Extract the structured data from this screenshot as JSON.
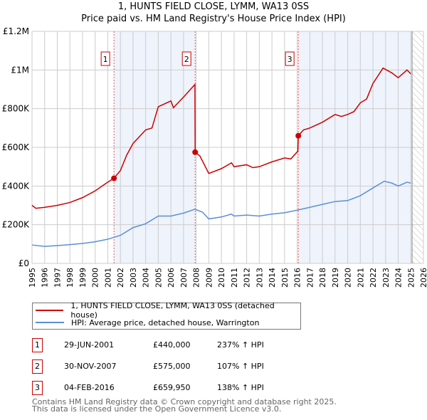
{
  "chart_data": {
    "type": "line",
    "title": "1, HUNTS FIELD CLOSE, LYMM, WA13 0SS",
    "subtitle": "Price paid vs. HM Land Registry's House Price Index (HPI)",
    "xlim": [
      1995,
      2026
    ],
    "ylim": [
      0,
      1200000
    ],
    "x_ticks": [
      "1995",
      "1996",
      "1997",
      "1998",
      "1999",
      "2000",
      "2001",
      "2002",
      "2003",
      "2004",
      "2005",
      "2006",
      "2007",
      "2008",
      "2009",
      "2010",
      "2011",
      "2012",
      "2013",
      "2014",
      "2015",
      "2016",
      "2017",
      "2018",
      "2019",
      "2020",
      "2021",
      "2022",
      "2023",
      "2024",
      "2025",
      "2026"
    ],
    "y_ticks": [
      {
        "v": 0,
        "label": "£0"
      },
      {
        "v": 200000,
        "label": "£200K"
      },
      {
        "v": 400000,
        "label": "£400K"
      },
      {
        "v": 600000,
        "label": "£600K"
      },
      {
        "v": 800000,
        "label": "£800K"
      },
      {
        "v": 1000000,
        "label": "£1M"
      },
      {
        "v": 1200000,
        "label": "£1.2M"
      }
    ],
    "grid": true,
    "shaded_periods": [
      [
        2001.49,
        2007.92
      ],
      [
        2016.09,
        2025.1
      ]
    ],
    "forecast_hatch_from": 2025.1,
    "series": [
      {
        "name": "1, HUNTS FIELD CLOSE, LYMM, WA13 0SS (detached house)",
        "color": "#cc0000",
        "x": [
          1995,
          1995.3,
          1996,
          1997,
          1998,
          1999,
          2000,
          2001,
          2001.49,
          2002,
          2002.5,
          2003,
          2004,
          2004.5,
          2005,
          2006,
          2006.2,
          2007,
          2007.9,
          2007.92,
          2008.3,
          2009,
          2010,
          2010.8,
          2011,
          2012,
          2012.5,
          2013,
          2014,
          2015,
          2015.5,
          2016.05,
          2016.09,
          2016.5,
          2017,
          2018,
          2019,
          2019.5,
          2020,
          2020.5,
          2021,
          2021.5,
          2022,
          2022.8,
          2023.5,
          2024,
          2024.7,
          2025
        ],
        "y": [
          300000,
          285000,
          290000,
          300000,
          315000,
          340000,
          375000,
          420000,
          440000,
          480000,
          560000,
          620000,
          690000,
          700000,
          810000,
          840000,
          805000,
          860000,
          925000,
          575000,
          555000,
          465000,
          490000,
          520000,
          500000,
          510000,
          495000,
          500000,
          525000,
          545000,
          540000,
          580000,
          659950,
          690000,
          700000,
          730000,
          770000,
          760000,
          770000,
          785000,
          830000,
          850000,
          930000,
          1010000,
          985000,
          960000,
          1000000,
          980000
        ]
      },
      {
        "name": "HPI: Average price, detached house, Warrington",
        "color": "#5b8fd6",
        "x": [
          1995,
          1996,
          1997,
          1998,
          1999,
          2000,
          2001,
          2002,
          2003,
          2004,
          2005,
          2006,
          2007,
          2007.9,
          2008.5,
          2009,
          2010,
          2010.8,
          2011,
          2012,
          2013,
          2014,
          2015,
          2016,
          2017,
          2018,
          2019,
          2020,
          2021,
          2022,
          2022.9,
          2023.5,
          2024,
          2024.7,
          2025
        ],
        "y": [
          95000,
          88000,
          92000,
          97000,
          103000,
          112000,
          125000,
          145000,
          185000,
          205000,
          245000,
          245000,
          260000,
          280000,
          265000,
          230000,
          240000,
          255000,
          245000,
          250000,
          245000,
          255000,
          262000,
          275000,
          290000,
          305000,
          320000,
          325000,
          350000,
          390000,
          425000,
          415000,
          400000,
          420000,
          415000
        ]
      }
    ],
    "sales": [
      {
        "num": "1",
        "x": 2001.49,
        "y": 440000,
        "date": "29-JUN-2001",
        "price": "£440,000",
        "hpi": "237% ↑ HPI"
      },
      {
        "num": "2",
        "x": 2007.92,
        "y": 575000,
        "date": "30-NOV-2007",
        "price": "£575,000",
        "hpi": "107% ↑ HPI"
      },
      {
        "num": "3",
        "x": 2016.09,
        "y": 659950,
        "date": "04-FEB-2016",
        "price": "£659,950",
        "hpi": "138% ↑ HPI"
      }
    ],
    "legend_placement": "below"
  },
  "footer": {
    "line1": "Contains HM Land Registry data © Crown copyright and database right 2025.",
    "line2": "This data is licensed under the Open Government Licence v3.0."
  }
}
